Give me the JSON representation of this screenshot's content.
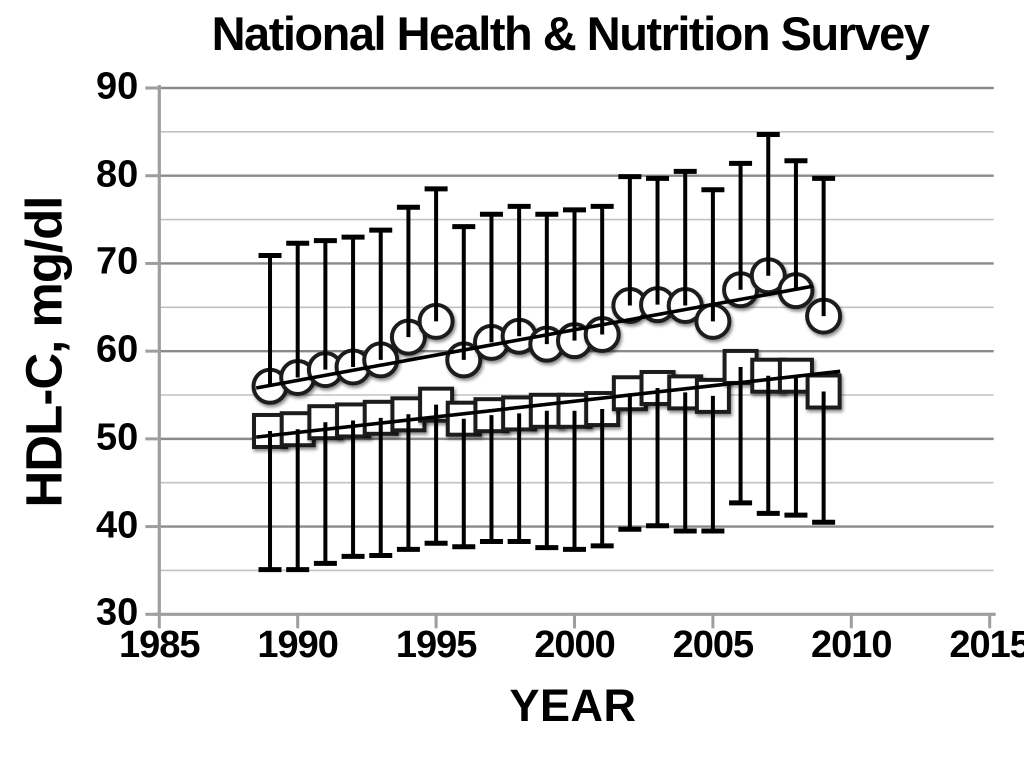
{
  "chart_data": {
    "type": "scatter",
    "title": "National Health & Nutrition Survey",
    "xlabel": "YEAR",
    "ylabel": "HDL-C, mg/dl",
    "xlim": [
      1985,
      2015
    ],
    "ylim": [
      30,
      90
    ],
    "x_ticks": [
      1985,
      1990,
      1995,
      2000,
      2005,
      2010,
      2015
    ],
    "y_ticks": [
      30,
      40,
      50,
      60,
      70,
      80,
      90
    ],
    "grid": "horizontal gridlines every 5 mg/dl, minor light / major darker",
    "legend_position": "none",
    "x": [
      1989,
      1990,
      1991,
      1992,
      1993,
      1994,
      1995,
      1996,
      1997,
      1998,
      1999,
      2000,
      2001,
      2002,
      2003,
      2004,
      2005,
      2006,
      2007,
      2008,
      2009
    ],
    "series": [
      {
        "name": "upper-series-circles",
        "marker": "circle",
        "values": [
          56.0,
          57.0,
          57.9,
          58.2,
          59.0,
          61.6,
          63.4,
          59.0,
          61.0,
          61.7,
          60.8,
          61.2,
          61.9,
          65.2,
          65.3,
          65.2,
          63.4,
          67.0,
          68.6,
          66.9,
          64.0
        ],
        "whisker_upper": [
          70.9,
          72.3,
          72.6,
          73.0,
          73.8,
          76.4,
          78.5,
          74.2,
          75.6,
          76.5,
          75.6,
          76.1,
          76.5,
          79.9,
          79.7,
          80.5,
          78.4,
          81.4,
          84.7,
          81.7,
          79.7
        ]
      },
      {
        "name": "lower-series-squares",
        "marker": "square",
        "values": [
          50.9,
          51.1,
          51.9,
          52.1,
          52.4,
          52.8,
          53.9,
          52.3,
          52.7,
          52.9,
          53.2,
          53.2,
          53.4,
          55.2,
          55.8,
          55.3,
          54.9,
          58.2,
          57.2,
          57.2,
          55.4
        ],
        "whisker_lower": [
          35.1,
          35.1,
          35.8,
          36.6,
          36.7,
          37.4,
          38.1,
          37.7,
          38.3,
          38.3,
          37.6,
          37.4,
          37.8,
          39.7,
          40.1,
          39.5,
          39.5,
          42.7,
          41.5,
          41.3,
          40.5
        ]
      }
    ],
    "trend_lines": [
      {
        "name": "circles-trend",
        "x1": 1988.5,
        "y1": 55.8,
        "x2": 2008.6,
        "y2": 67.4
      },
      {
        "name": "squares-trend",
        "x1": 1988.5,
        "y1": 50.2,
        "x2": 2009.6,
        "y2": 57.7
      }
    ]
  },
  "colors": {
    "background": "#ffffff",
    "text": "#000000",
    "axis": "#9e9e9e",
    "grid_major": "#8a8a8a",
    "grid_minor": "#c2c2c2",
    "marker_stroke": "#1f1f1f",
    "marker_fill": "#ffffff",
    "whisker": "#000000",
    "trend": "#000000"
  }
}
